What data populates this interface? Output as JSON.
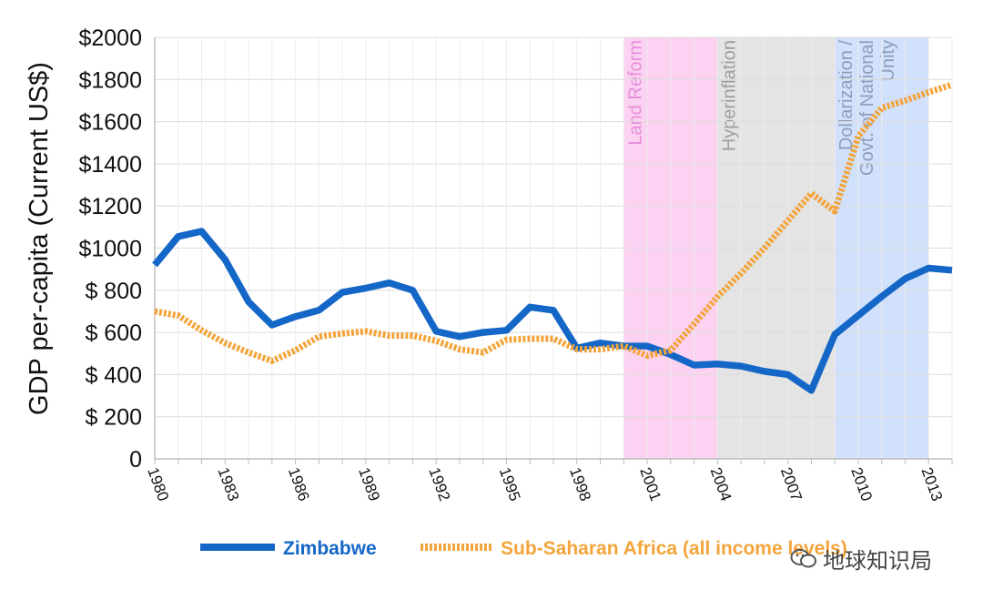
{
  "chart_data": {
    "type": "line",
    "ylabel": "GDP per-capita (Current US$)",
    "ylim": [
      0,
      2000
    ],
    "xlim": [
      1980,
      2014
    ],
    "yticks": [
      {
        "v": 0,
        "label": "0"
      },
      {
        "v": 200,
        "label": "$ 200"
      },
      {
        "v": 400,
        "label": "$ 400"
      },
      {
        "v": 600,
        "label": "$ 600"
      },
      {
        "v": 800,
        "label": "$ 800"
      },
      {
        "v": 1000,
        "label": "$1000"
      },
      {
        "v": 1200,
        "label": "$1200"
      },
      {
        "v": 1400,
        "label": "$1400"
      },
      {
        "v": 1600,
        "label": "$1600"
      },
      {
        "v": 1800,
        "label": "$1800"
      },
      {
        "v": 2000,
        "label": "$2000"
      }
    ],
    "xtick_labels": [
      "1980",
      "1983",
      "1986",
      "1989",
      "1992",
      "1995",
      "1998",
      "2001",
      "2004",
      "2007",
      "2010",
      "2013"
    ],
    "periods": [
      {
        "label": "Land Reform",
        "start": 2000,
        "end": 2004,
        "color": "#fcd2f2",
        "text_color": "#e58fd9"
      },
      {
        "label": "Hyperinflation",
        "start": 2004,
        "end": 2009,
        "color": "#e4e4e4",
        "text_color": "#9e9e9e"
      },
      {
        "label": "Dollarization / Govt. of National Unity",
        "lines": [
          "Dollarization /",
          "Govt. of National",
          "Unity"
        ],
        "start": 2009,
        "end": 2013,
        "color": "#d1e1fb",
        "text_color": "#8e9cb8"
      }
    ],
    "series": [
      {
        "name": "Zimbabwe",
        "color": "#1467c7",
        "style": "solid",
        "x": [
          1980,
          1981,
          1982,
          1983,
          1984,
          1985,
          1986,
          1987,
          1988,
          1989,
          1990,
          1991,
          1992,
          1993,
          1994,
          1995,
          1996,
          1997,
          1998,
          1999,
          2000,
          2001,
          2002,
          2003,
          2004,
          2005,
          2006,
          2007,
          2008,
          2009,
          2010,
          2011,
          2012,
          2013,
          2014
        ],
        "values": [
          920,
          1055,
          1080,
          945,
          745,
          635,
          675,
          705,
          790,
          810,
          835,
          800,
          605,
          580,
          600,
          610,
          720,
          705,
          525,
          550,
          535,
          535,
          495,
          445,
          450,
          440,
          415,
          400,
          325,
          590,
          680,
          770,
          855,
          905,
          895
        ]
      },
      {
        "name": "Sub-Saharan Africa (all income levels)",
        "color": "#f3a43a",
        "style": "dashed",
        "x": [
          1980,
          1981,
          1982,
          1983,
          1984,
          1985,
          1986,
          1987,
          1988,
          1989,
          1990,
          1991,
          1992,
          1993,
          1994,
          1995,
          1996,
          1997,
          1998,
          1999,
          2000,
          2001,
          2002,
          2003,
          2004,
          2005,
          2006,
          2007,
          2008,
          2009,
          2010,
          2011,
          2012,
          2013,
          2014
        ],
        "values": [
          700,
          680,
          610,
          550,
          505,
          465,
          515,
          580,
          595,
          605,
          585,
          585,
          560,
          520,
          505,
          565,
          570,
          570,
          520,
          520,
          535,
          490,
          515,
          640,
          770,
          880,
          1000,
          1130,
          1260,
          1175,
          1530,
          1665,
          1700,
          1740,
          1775
        ]
      }
    ]
  },
  "legend": {
    "zimbabwe_label": "Zimbabwe",
    "ssa_label": "Sub-Saharan Africa (all income levels)"
  },
  "watermark": {
    "text": "地球知识局"
  }
}
